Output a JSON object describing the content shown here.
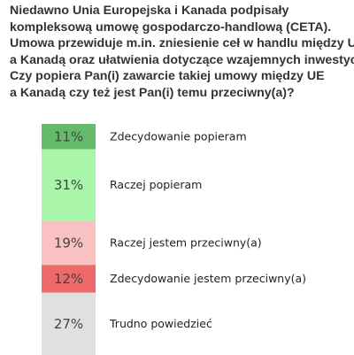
{
  "question": {
    "lines": [
      "Niedawno Unia Europejska i Kanada podpisały",
      "kompleksową umowę gospodarczo-handlową (CETA).",
      "Umowa przewiduje m.in. zniesienie ceł w handlu między UE",
      "a Kanadą oraz ułatwienia dotyczące wzajemnych inwestycji.",
      "Czy popiera Pan(i) zawarcie takiej umowy między UE",
      "a Kanadą czy też jest Pan(i) temu przeciwny(a)?"
    ]
  },
  "chart_data": {
    "type": "bar",
    "orientation": "vertical-stacked-100",
    "unit": "%",
    "categories": [
      "Zdecydowanie popieram",
      "Raczej popieram",
      "Raczej jestem przeciwny(a)",
      "Zdecydowanie jestem przeciwny(a)",
      "Trudno powiedzieć"
    ],
    "values": [
      11,
      31,
      19,
      12,
      27
    ],
    "value_labels": [
      "11%",
      "31%",
      "19%",
      "12%",
      "27%"
    ],
    "colors": [
      "#66bb6a",
      "#a9f5a9",
      "#f9c1c1",
      "#ee6a6a",
      "#e0e0e0"
    ]
  }
}
